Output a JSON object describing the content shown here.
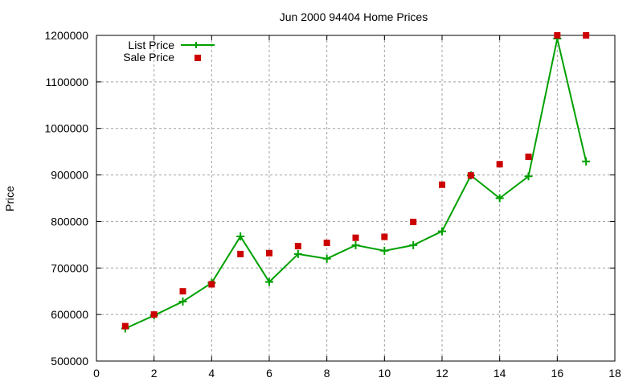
{
  "chart_data": {
    "type": "line",
    "title": "Jun 2000 94404 Home Prices",
    "xlabel": "",
    "ylabel": "Price",
    "xlim": [
      0,
      18
    ],
    "ylim": [
      500000,
      1200000
    ],
    "x_ticks": [
      0,
      2,
      4,
      6,
      8,
      10,
      12,
      14,
      16,
      18
    ],
    "y_ticks": [
      500000,
      600000,
      700000,
      800000,
      900000,
      1000000,
      1100000,
      1200000
    ],
    "grid": true,
    "legend_position": "top-left",
    "x": [
      1,
      2,
      3,
      4,
      5,
      6,
      7,
      8,
      9,
      10,
      11,
      12,
      13,
      14,
      15,
      16,
      17
    ],
    "series": [
      {
        "name": "List Price",
        "style": "linespoints",
        "marker": "plus",
        "color": "#00a000",
        "values": [
          570000,
          598000,
          628000,
          668000,
          768000,
          670000,
          730000,
          720000,
          749000,
          737000,
          749000,
          779000,
          899000,
          850000,
          897000,
          1193000,
          929000
        ]
      },
      {
        "name": "Sale Price",
        "style": "points",
        "marker": "square",
        "color": "#cc0000",
        "values": [
          575000,
          600000,
          650000,
          665000,
          730000,
          732000,
          747000,
          754000,
          765000,
          767000,
          799000,
          879000,
          899000,
          923000,
          939000,
          1200000,
          1200000
        ]
      }
    ]
  }
}
